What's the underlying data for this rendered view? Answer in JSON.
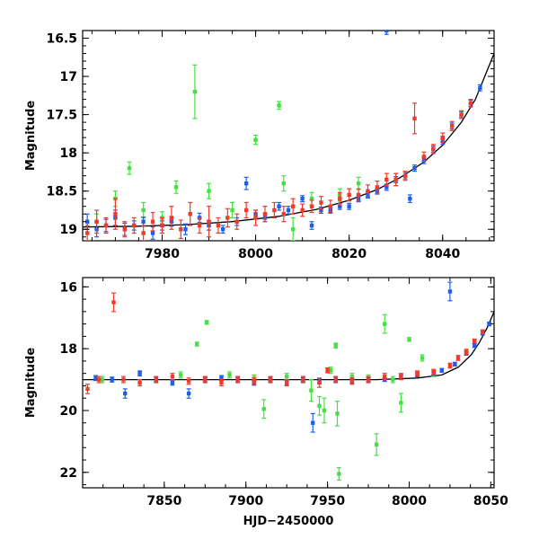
{
  "colors": {
    "blue": "#1f5fe6",
    "red": "#f03a2a",
    "green": "#44e044",
    "model": "#000000"
  },
  "chart_data": [
    {
      "type": "scatter",
      "title": "",
      "ylabel": "Magnitude",
      "xlabel": "",
      "xlim": [
        7963,
        8051
      ],
      "ylim": [
        19.15,
        16.4
      ],
      "y_inverted": true,
      "grid": false,
      "legend": "none",
      "xticks": [
        7980,
        8000,
        8020,
        8040
      ],
      "xtick_labels": [
        "7980",
        "8000",
        "8020",
        "8040"
      ],
      "yticks": [
        16.5,
        17,
        17.5,
        18,
        18.5,
        19
      ],
      "ytick_labels": [
        "16.5",
        "17",
        "17.5",
        "18",
        "18.5",
        "19"
      ],
      "model_curve": [
        [
          7963,
          18.97
        ],
        [
          7975,
          18.96
        ],
        [
          7985,
          18.94
        ],
        [
          7995,
          18.9
        ],
        [
          8005,
          18.83
        ],
        [
          8013,
          18.74
        ],
        [
          8020,
          18.62
        ],
        [
          8026,
          18.48
        ],
        [
          8031,
          18.32
        ],
        [
          8036,
          18.12
        ],
        [
          8040,
          17.9
        ],
        [
          8044,
          17.6
        ],
        [
          8047,
          17.3
        ],
        [
          8049,
          17.0
        ],
        [
          8051,
          16.7
        ]
      ],
      "series": [
        {
          "color": "blue",
          "points": [
            [
              7964,
              18.9,
              0.1
            ],
            [
              7966,
              19.0,
              0.1
            ],
            [
              7968,
              18.95,
              0.08
            ],
            [
              7970,
              18.85,
              0.1
            ],
            [
              7972,
              19.0,
              0.08
            ],
            [
              7974,
              18.95,
              0.06
            ],
            [
              7976,
              18.9,
              0.06
            ],
            [
              7978,
              19.05,
              0.08
            ],
            [
              7980,
              18.95,
              0.06
            ],
            [
              7982,
              18.9,
              0.06
            ],
            [
              7985,
              19.0,
              0.07
            ],
            [
              7988,
              18.85,
              0.06
            ],
            [
              7990,
              18.95,
              0.06
            ],
            [
              7993,
              19.0,
              0.05
            ],
            [
              7996,
              18.9,
              0.05
            ],
            [
              7998,
              18.4,
              0.08
            ],
            [
              8000,
              18.8,
              0.05
            ],
            [
              8002,
              18.85,
              0.05
            ],
            [
              8005,
              18.7,
              0.05
            ],
            [
              8007,
              18.75,
              0.05
            ],
            [
              8010,
              18.6,
              0.04
            ],
            [
              8012,
              18.95,
              0.05
            ],
            [
              8014,
              18.75,
              0.04
            ],
            [
              8016,
              18.75,
              0.04
            ],
            [
              8018,
              18.7,
              0.04
            ],
            [
              8020,
              18.7,
              0.04
            ],
            [
              8022,
              18.6,
              0.04
            ],
            [
              8024,
              18.55,
              0.04
            ],
            [
              8026,
              18.5,
              0.04
            ],
            [
              8028,
              18.45,
              0.04
            ],
            [
              8030,
              18.35,
              0.04
            ],
            [
              8032,
              18.3,
              0.04
            ],
            [
              8034,
              18.2,
              0.04
            ],
            [
              8036,
              18.1,
              0.04
            ],
            [
              8038,
              17.95,
              0.04
            ],
            [
              8040,
              17.85,
              0.04
            ],
            [
              8042,
              17.65,
              0.04
            ],
            [
              8044,
              17.5,
              0.04
            ],
            [
              8046,
              17.35,
              0.04
            ],
            [
              8048,
              17.15,
              0.04
            ],
            [
              8028,
              16.4,
              0.05
            ],
            [
              8033,
              18.6,
              0.05
            ]
          ]
        },
        {
          "color": "red",
          "points": [
            [
              7964,
              19.05,
              0.1
            ],
            [
              7966,
              18.9,
              0.15
            ],
            [
              7968,
              18.95,
              0.1
            ],
            [
              7970,
              18.8,
              0.2
            ],
            [
              7972,
              19.0,
              0.1
            ],
            [
              7974,
              18.95,
              0.1
            ],
            [
              7976,
              19.05,
              0.1
            ],
            [
              7978,
              18.9,
              0.12
            ],
            [
              7980,
              18.95,
              0.1
            ],
            [
              7982,
              18.85,
              0.15
            ],
            [
              7984,
              19.0,
              0.12
            ],
            [
              7986,
              18.8,
              0.15
            ],
            [
              7988,
              18.95,
              0.1
            ],
            [
              7990,
              18.9,
              0.2
            ],
            [
              7992,
              18.95,
              0.1
            ],
            [
              7994,
              18.85,
              0.12
            ],
            [
              7996,
              18.9,
              0.1
            ],
            [
              7998,
              18.75,
              0.1
            ],
            [
              8000,
              18.85,
              0.1
            ],
            [
              8002,
              18.8,
              0.1
            ],
            [
              8004,
              18.75,
              0.1
            ],
            [
              8006,
              18.8,
              0.1
            ],
            [
              8008,
              18.7,
              0.1
            ],
            [
              8010,
              18.75,
              0.08
            ],
            [
              8012,
              18.7,
              0.08
            ],
            [
              8014,
              18.65,
              0.08
            ],
            [
              8016,
              18.7,
              0.08
            ],
            [
              8018,
              18.6,
              0.08
            ],
            [
              8020,
              18.55,
              0.08
            ],
            [
              8022,
              18.55,
              0.08
            ],
            [
              8024,
              18.5,
              0.08
            ],
            [
              8026,
              18.45,
              0.08
            ],
            [
              8028,
              18.35,
              0.08
            ],
            [
              8030,
              18.35,
              0.08
            ],
            [
              8032,
              18.3,
              0.06
            ],
            [
              8034,
              17.55,
              0.2
            ],
            [
              8036,
              18.05,
              0.06
            ],
            [
              8038,
              17.95,
              0.06
            ],
            [
              8040,
              17.8,
              0.06
            ],
            [
              8042,
              17.65,
              0.06
            ],
            [
              8044,
              17.5,
              0.05
            ],
            [
              8046,
              17.35,
              0.05
            ]
          ]
        },
        {
          "color": "green",
          "points": [
            [
              7966,
              18.9,
              0.1
            ],
            [
              7970,
              18.6,
              0.1
            ],
            [
              7973,
              18.2,
              0.08
            ],
            [
              7976,
              18.75,
              0.1
            ],
            [
              7980,
              18.85,
              0.08
            ],
            [
              7983,
              18.45,
              0.08
            ],
            [
              7987,
              17.2,
              0.35
            ],
            [
              7990,
              18.5,
              0.1
            ],
            [
              7995,
              18.75,
              0.1
            ],
            [
              8000,
              17.83,
              0.06
            ],
            [
              8005,
              17.38,
              0.05
            ],
            [
              8006,
              18.4,
              0.1
            ],
            [
              8008,
              19.0,
              0.15
            ],
            [
              8012,
              18.6,
              0.08
            ],
            [
              8018,
              18.55,
              0.08
            ],
            [
              8022,
              18.4,
              0.08
            ],
            [
              8030,
              18.35,
              0.08
            ]
          ]
        }
      ]
    },
    {
      "type": "scatter",
      "title": "",
      "ylabel": "Magnitude",
      "xlabel": "HJD−2450000",
      "xlim": [
        7800,
        8052
      ],
      "ylim": [
        22.5,
        15.7
      ],
      "y_inverted": true,
      "grid": false,
      "legend": "none",
      "xticks": [
        7850,
        7900,
        7950,
        8000,
        8050
      ],
      "xtick_labels": [
        "7850",
        "7900",
        "7950",
        "8000",
        "8050"
      ],
      "yticks": [
        16,
        18,
        20,
        22
      ],
      "ytick_labels": [
        "16",
        "18",
        "20",
        "22"
      ],
      "model_curve": [
        [
          7800,
          19.0
        ],
        [
          7900,
          19.0
        ],
        [
          7980,
          19.0
        ],
        [
          8005,
          18.95
        ],
        [
          8020,
          18.85
        ],
        [
          8030,
          18.6
        ],
        [
          8038,
          18.2
        ],
        [
          8043,
          17.8
        ],
        [
          8048,
          17.3
        ],
        [
          8052,
          16.8
        ]
      ],
      "series": [
        {
          "color": "blue",
          "points": [
            [
              7808,
              18.95,
              0.08
            ],
            [
              7818,
              19.0,
              0.08
            ],
            [
              7826,
              19.45,
              0.15
            ],
            [
              7835,
              18.8,
              0.08
            ],
            [
              7845,
              19.0,
              0.08
            ],
            [
              7855,
              19.1,
              0.08
            ],
            [
              7865,
              19.45,
              0.15
            ],
            [
              7875,
              19.0,
              0.08
            ],
            [
              7885,
              18.95,
              0.08
            ],
            [
              7895,
              19.0,
              0.08
            ],
            [
              7905,
              19.1,
              0.08
            ],
            [
              7915,
              19.0,
              0.08
            ],
            [
              7925,
              19.1,
              0.08
            ],
            [
              7935,
              19.0,
              0.08
            ],
            [
              7941,
              20.4,
              0.3
            ],
            [
              7945,
              19.05,
              0.08
            ],
            [
              7955,
              19.0,
              0.08
            ],
            [
              7965,
              19.05,
              0.08
            ],
            [
              7975,
              19.0,
              0.08
            ],
            [
              7985,
              19.0,
              0.06
            ],
            [
              7995,
              18.9,
              0.06
            ],
            [
              8005,
              18.85,
              0.06
            ],
            [
              8015,
              18.8,
              0.06
            ],
            [
              8020,
              18.7,
              0.06
            ],
            [
              8025,
              16.15,
              0.3
            ],
            [
              8028,
              18.5,
              0.06
            ],
            [
              8035,
              18.15,
              0.06
            ],
            [
              8040,
              17.9,
              0.06
            ],
            [
              8045,
              17.5,
              0.06
            ],
            [
              8049,
              17.2,
              0.06
            ]
          ]
        },
        {
          "color": "red",
          "points": [
            [
              7803,
              19.3,
              0.15
            ],
            [
              7810,
              19.0,
              0.1
            ],
            [
              7819,
              16.5,
              0.3
            ],
            [
              7825,
              19.0,
              0.1
            ],
            [
              7835,
              19.1,
              0.1
            ],
            [
              7845,
              19.0,
              0.1
            ],
            [
              7855,
              18.9,
              0.1
            ],
            [
              7865,
              19.05,
              0.1
            ],
            [
              7875,
              19.0,
              0.1
            ],
            [
              7885,
              19.1,
              0.1
            ],
            [
              7895,
              19.0,
              0.1
            ],
            [
              7905,
              19.05,
              0.1
            ],
            [
              7915,
              19.0,
              0.1
            ],
            [
              7925,
              19.1,
              0.1
            ],
            [
              7935,
              19.0,
              0.1
            ],
            [
              7945,
              19.1,
              0.15
            ],
            [
              7950,
              18.7,
              0.08
            ],
            [
              7955,
              19.0,
              0.1
            ],
            [
              7965,
              19.05,
              0.1
            ],
            [
              7975,
              19.0,
              0.1
            ],
            [
              7985,
              18.9,
              0.1
            ],
            [
              7995,
              18.9,
              0.1
            ],
            [
              8005,
              18.8,
              0.08
            ],
            [
              8015,
              18.75,
              0.08
            ],
            [
              8025,
              18.55,
              0.08
            ],
            [
              8030,
              18.3,
              0.08
            ],
            [
              8035,
              18.1,
              0.08
            ],
            [
              8040,
              17.75,
              0.06
            ],
            [
              8045,
              17.45,
              0.06
            ]
          ]
        },
        {
          "color": "green",
          "points": [
            [
              7812,
              19.0,
              0.1
            ],
            [
              7860,
              18.85,
              0.1
            ],
            [
              7870,
              17.85,
              0.06
            ],
            [
              7876,
              17.15,
              0.06
            ],
            [
              7890,
              18.85,
              0.1
            ],
            [
              7905,
              18.95,
              0.1
            ],
            [
              7911,
              19.95,
              0.3
            ],
            [
              7925,
              18.9,
              0.1
            ],
            [
              7940,
              19.35,
              0.35
            ],
            [
              7945,
              19.85,
              0.3
            ],
            [
              7948,
              20.0,
              0.4
            ],
            [
              7952,
              18.7,
              0.1
            ],
            [
              7955,
              17.9,
              0.08
            ],
            [
              7956,
              20.1,
              0.4
            ],
            [
              7957,
              22.05,
              0.2
            ],
            [
              7965,
              18.9,
              0.1
            ],
            [
              7975,
              18.95,
              0.1
            ],
            [
              7980,
              21.1,
              0.35
            ],
            [
              7985,
              17.2,
              0.3
            ],
            [
              7990,
              19.0,
              0.1
            ],
            [
              7995,
              19.75,
              0.3
            ],
            [
              8000,
              17.7,
              0.06
            ],
            [
              8008,
              18.3,
              0.1
            ],
            [
              8015,
              18.8,
              0.1
            ]
          ]
        }
      ]
    }
  ]
}
